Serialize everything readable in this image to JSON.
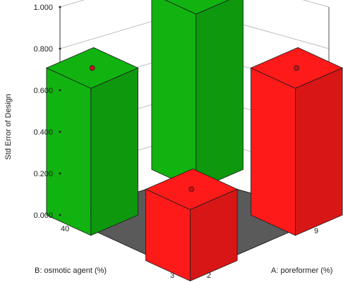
{
  "chart_data": {
    "type": "bar3d",
    "ylabel": "Std Error of Design",
    "xlabel": "A: poreformer (%)",
    "zlabel": "B: osmotic agent (%)",
    "y_ticks": [
      "0.000",
      "0.200",
      "0.400",
      "0.600",
      "0.800",
      "1.000"
    ],
    "ylim": [
      0,
      1
    ],
    "a_ticks": [
      "2",
      "9"
    ],
    "b_ticks": [
      "3",
      "40"
    ],
    "bars": [
      {
        "a": "2",
        "b": "40",
        "value": 0.707,
        "color": "#11b311",
        "marker": "#d01010"
      },
      {
        "a": "9",
        "b": "40",
        "value": 0.845,
        "color": "#11b311",
        "marker": "#d01010"
      },
      {
        "a": "2",
        "b": "3",
        "value": 0.343,
        "color": "#ff1a1a",
        "marker": "#d01010"
      },
      {
        "a": "9",
        "b": "3",
        "value": 0.707,
        "color": "#ff1a1a",
        "marker": "#d01010"
      }
    ],
    "floor_color": "#5a5a5a",
    "grid": true
  }
}
